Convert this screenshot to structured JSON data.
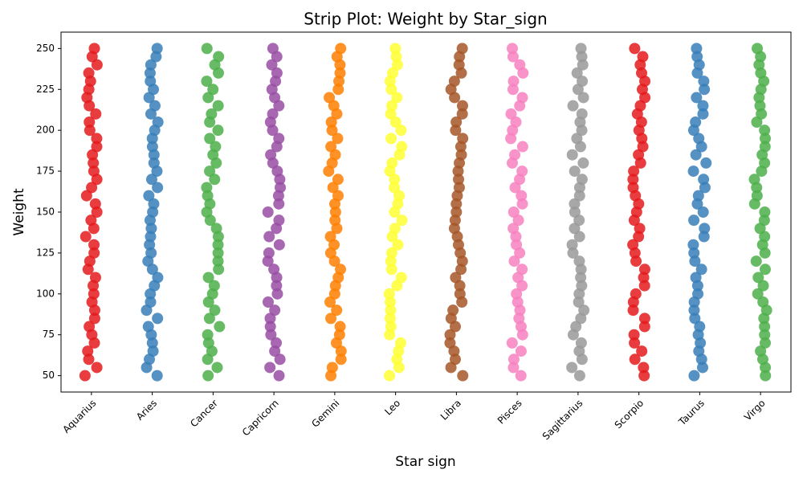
{
  "chart_data": {
    "type": "strip",
    "title": "Strip Plot: Weight by Star_sign",
    "x_label": "Star sign",
    "y_label": "Weight",
    "categories": [
      "Aquarius",
      "Aries",
      "Cancer",
      "Capricorn",
      "Gemini",
      "Leo",
      "Libra",
      "Pisces",
      "Sagittarius",
      "Scorpio",
      "Taurus",
      "Virgo"
    ],
    "colors": [
      "#e41a1c",
      "#377eb8",
      "#4daf4a",
      "#984ea3",
      "#ff7f00",
      "#ffff33",
      "#a65628",
      "#f781bf",
      "#999999",
      "#e41a1c",
      "#377eb8",
      "#4daf4a"
    ],
    "values": [
      [
        50,
        55,
        60,
        65,
        70,
        75,
        80,
        85,
        90,
        95,
        100,
        105,
        110,
        115,
        120,
        125,
        130,
        135,
        140,
        145,
        150,
        155,
        160,
        165,
        170,
        175,
        180,
        185,
        190,
        195,
        200,
        205,
        210,
        215,
        220,
        225,
        230,
        235,
        240,
        245,
        250
      ],
      [
        50,
        55,
        60,
        65,
        70,
        75,
        80,
        85,
        90,
        95,
        100,
        105,
        110,
        115,
        120,
        125,
        130,
        135,
        140,
        145,
        150,
        155,
        160,
        165,
        170,
        175,
        180,
        185,
        190,
        195,
        200,
        205,
        210,
        215,
        220,
        225,
        230,
        235,
        240,
        245,
        250
      ],
      [
        50,
        55,
        60,
        65,
        70,
        75,
        80,
        85,
        90,
        95,
        100,
        105,
        110,
        115,
        120,
        125,
        130,
        135,
        140,
        145,
        150,
        155,
        160,
        165,
        170,
        175,
        180,
        185,
        190,
        195,
        200,
        205,
        210,
        215,
        220,
        225,
        230,
        235,
        240,
        245,
        250
      ],
      [
        50,
        55,
        60,
        65,
        70,
        75,
        80,
        85,
        90,
        95,
        100,
        105,
        110,
        115,
        120,
        125,
        130,
        135,
        140,
        145,
        150,
        155,
        160,
        165,
        170,
        175,
        180,
        185,
        190,
        195,
        200,
        205,
        210,
        215,
        220,
        225,
        230,
        235,
        240,
        245,
        250
      ],
      [
        50,
        55,
        60,
        65,
        70,
        75,
        80,
        85,
        90,
        95,
        100,
        105,
        110,
        115,
        120,
        125,
        130,
        135,
        140,
        145,
        150,
        155,
        160,
        165,
        170,
        175,
        180,
        185,
        190,
        195,
        200,
        205,
        210,
        215,
        220,
        225,
        230,
        235,
        240,
        245,
        250
      ],
      [
        50,
        55,
        60,
        65,
        70,
        75,
        80,
        85,
        90,
        95,
        100,
        105,
        110,
        115,
        120,
        125,
        130,
        135,
        140,
        145,
        150,
        155,
        160,
        165,
        170,
        175,
        180,
        185,
        190,
        195,
        200,
        205,
        210,
        215,
        220,
        225,
        230,
        235,
        240,
        245,
        250
      ],
      [
        50,
        55,
        60,
        65,
        70,
        75,
        80,
        85,
        90,
        95,
        100,
        105,
        110,
        115,
        120,
        125,
        130,
        135,
        140,
        145,
        150,
        155,
        160,
        165,
        170,
        175,
        180,
        185,
        190,
        195,
        200,
        205,
        210,
        215,
        220,
        225,
        230,
        235,
        240,
        245,
        250
      ],
      [
        50,
        55,
        60,
        65,
        70,
        75,
        80,
        85,
        90,
        95,
        100,
        105,
        110,
        115,
        120,
        125,
        130,
        135,
        140,
        145,
        150,
        155,
        160,
        165,
        170,
        175,
        180,
        185,
        190,
        195,
        200,
        205,
        210,
        215,
        220,
        225,
        230,
        235,
        240,
        245,
        250
      ],
      [
        50,
        55,
        60,
        65,
        70,
        75,
        80,
        85,
        90,
        95,
        100,
        105,
        110,
        115,
        120,
        125,
        130,
        135,
        140,
        145,
        150,
        155,
        160,
        165,
        170,
        175,
        180,
        185,
        190,
        195,
        200,
        205,
        210,
        215,
        220,
        225,
        230,
        235,
        240,
        245,
        250
      ],
      [
        50,
        55,
        60,
        65,
        70,
        75,
        80,
        85,
        90,
        95,
        100,
        105,
        110,
        115,
        120,
        125,
        130,
        135,
        140,
        145,
        150,
        155,
        160,
        165,
        170,
        175,
        180,
        185,
        190,
        195,
        200,
        205,
        210,
        215,
        220,
        225,
        230,
        235,
        240,
        245,
        250
      ],
      [
        50,
        55,
        60,
        65,
        70,
        75,
        80,
        85,
        90,
        95,
        100,
        105,
        110,
        115,
        120,
        125,
        130,
        135,
        140,
        145,
        150,
        155,
        160,
        165,
        170,
        175,
        180,
        185,
        190,
        195,
        200,
        205,
        210,
        215,
        220,
        225,
        230,
        235,
        240,
        245,
        250
      ],
      [
        50,
        55,
        60,
        65,
        70,
        75,
        80,
        85,
        90,
        95,
        100,
        105,
        110,
        115,
        120,
        125,
        130,
        135,
        140,
        145,
        150,
        155,
        160,
        165,
        170,
        175,
        180,
        185,
        190,
        195,
        200,
        205,
        210,
        215,
        220,
        225,
        230,
        235,
        240,
        245,
        250
      ]
    ],
    "ylim": [
      40,
      260
    ],
    "yticks": [
      50,
      75,
      100,
      125,
      150,
      175,
      200,
      225,
      250
    ]
  }
}
